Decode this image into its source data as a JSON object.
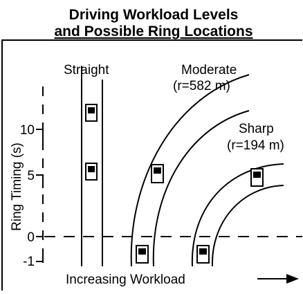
{
  "title": [
    "Driving Workload Levels",
    "and Possible Ring Locations"
  ],
  "roads": [
    {
      "label": [
        "Straight"
      ]
    },
    {
      "label": [
        "Moderate",
        "(r=582 m)"
      ]
    },
    {
      "label": [
        "Sharp",
        "(r=194 m)"
      ]
    }
  ],
  "y_axis": {
    "label": "Ring Timing (s)",
    "ticks": [
      10,
      5,
      0,
      -1
    ]
  },
  "x_axis": {
    "label": "Increasing Workload"
  }
}
